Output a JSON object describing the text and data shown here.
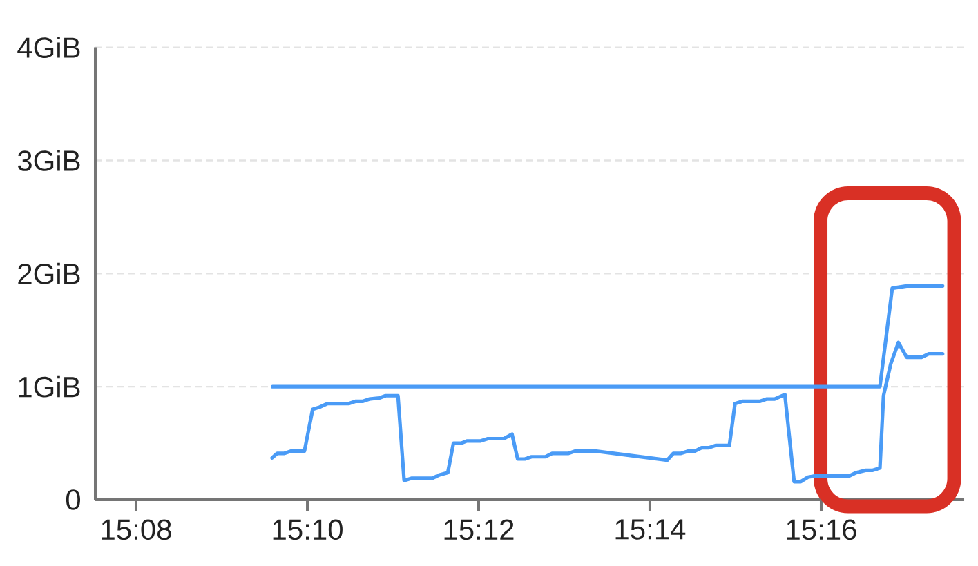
{
  "chart_data": {
    "type": "line",
    "xlim": [
      15.1254,
      15.2945
    ],
    "xticks": [
      {
        "value": 15.13333,
        "label": "15:08"
      },
      {
        "value": 15.16667,
        "label": "15:10"
      },
      {
        "value": 15.2,
        "label": "15:12"
      },
      {
        "value": 15.23333,
        "label": "15:14"
      },
      {
        "value": 15.26667,
        "label": "15:16"
      }
    ],
    "ylim": [
      0,
      4
    ],
    "yticks": [
      0,
      {
        "value": 1,
        "label": "1GiB"
      },
      {
        "value": 2,
        "label": "2GiB"
      },
      {
        "value": 3,
        "label": "3GiB"
      },
      {
        "value": 4,
        "label": "4GiB"
      }
    ],
    "grid": "y",
    "bands": [
      {
        "axis": "x",
        "from": 15.2652,
        "to": 15.2939,
        "color": "#d93025"
      }
    ],
    "series": [
      {
        "color": "#4a9bf6",
        "x": [
          15.1599,
          15.2781,
          15.2805,
          15.2833,
          15.2903
        ],
        "values": [
          1.0,
          1.0,
          1.87,
          1.89,
          1.89
        ]
      },
      {
        "color": "#4a9bf6",
        "x": [
          15.1598,
          15.1608,
          15.1622,
          15.1635,
          15.1661,
          15.1677,
          15.1691,
          15.1706,
          15.1747,
          15.176,
          15.1774,
          15.1787,
          15.1807,
          15.1819,
          15.1843,
          15.1855,
          15.187,
          15.191,
          15.1924,
          15.194,
          15.1951,
          15.1966,
          15.1977,
          15.2004,
          15.2018,
          15.2049,
          15.2065,
          15.2076,
          15.209,
          15.2103,
          15.213,
          15.2143,
          15.2175,
          15.2188,
          15.2229,
          15.2367,
          15.2379,
          15.2394,
          15.2408,
          15.2421,
          15.2434,
          15.2448,
          15.2461,
          15.2488,
          15.2499,
          15.2513,
          15.2547,
          15.256,
          15.2576,
          15.2596,
          15.2614,
          15.2627,
          15.2641,
          15.2654,
          15.2721,
          15.2735,
          15.2753,
          15.2766,
          15.2781,
          15.2788,
          15.2802,
          15.2817,
          15.2833,
          15.2862,
          15.2876,
          15.2903
        ],
        "values": [
          0.37,
          0.41,
          0.41,
          0.43,
          0.43,
          0.8,
          0.82,
          0.85,
          0.85,
          0.87,
          0.87,
          0.89,
          0.9,
          0.92,
          0.92,
          0.17,
          0.19,
          0.19,
          0.22,
          0.24,
          0.5,
          0.5,
          0.52,
          0.52,
          0.54,
          0.54,
          0.58,
          0.36,
          0.36,
          0.38,
          0.38,
          0.41,
          0.41,
          0.43,
          0.43,
          0.35,
          0.41,
          0.41,
          0.43,
          0.43,
          0.46,
          0.46,
          0.48,
          0.48,
          0.85,
          0.87,
          0.87,
          0.89,
          0.89,
          0.93,
          0.16,
          0.16,
          0.2,
          0.21,
          0.21,
          0.24,
          0.26,
          0.26,
          0.28,
          0.92,
          1.2,
          1.39,
          1.26,
          1.26,
          1.29,
          1.29
        ]
      }
    ]
  }
}
